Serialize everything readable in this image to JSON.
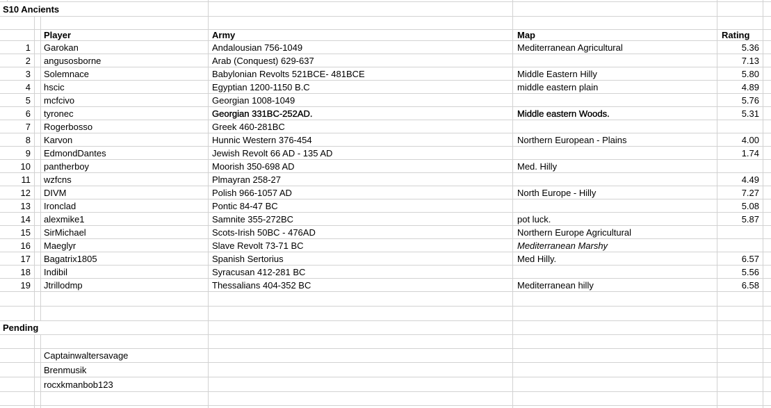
{
  "sheet": {
    "title": "S10 Ancients",
    "pending_label": "Pending",
    "headers": {
      "player": "Player",
      "army": "Army",
      "map": "Map",
      "rating": "Rating"
    },
    "players": [
      {
        "num": "1",
        "player": "Garokan",
        "army": "Andalousian 756-1049",
        "map": "Mediterranean Agricultural",
        "rating": "5.36"
      },
      {
        "num": "2",
        "player": "angusosborne",
        "army": "Arab (Conquest) 629-637",
        "map": "",
        "rating": "7.13"
      },
      {
        "num": "3",
        "player": "Solemnace",
        "army": "Babylonian Revolts 521BCE- 481BCE",
        "map": "Middle Eastern Hilly",
        "rating": "5.80"
      },
      {
        "num": "4",
        "player": "hscic",
        "army": "Egyptian 1200-1150 B.C",
        "map": "middle eastern plain",
        "rating": "4.89"
      },
      {
        "num": "5",
        "player": "mcfcivo",
        "army": "Georgian 1008-1049",
        "map": "",
        "rating": "5.76"
      },
      {
        "num": "6",
        "player": "tyronec",
        "army": "Georgian 331BC-252AD.",
        "map": "Middle eastern Woods.",
        "rating": "5.31",
        "army_emphasis": true,
        "map_emphasis": true
      },
      {
        "num": "7",
        "player": "Rogerbosso",
        "army": "Greek 460-281BC",
        "map": "",
        "rating": ""
      },
      {
        "num": "8",
        "player": "Karvon",
        "army": "Hunnic Western 376-454",
        "map": "Northern European - Plains",
        "rating": "4.00"
      },
      {
        "num": "9",
        "player": "EdmondDantes",
        "army": "Jewish Revolt 66 AD - 135 AD",
        "map": "",
        "rating": "1.74"
      },
      {
        "num": "10",
        "player": "pantherboy",
        "army": "Moorish 350-698 AD",
        "map": "Med. Hilly",
        "rating": ""
      },
      {
        "num": "11",
        "player": "wzfcns",
        "army": "Plmayran 258-27",
        "map": "",
        "rating": "4.49"
      },
      {
        "num": "12",
        "player": "DIVM",
        "army": "Polish 966-1057 AD",
        "map": "North Europe - Hilly",
        "rating": "7.27"
      },
      {
        "num": "13",
        "player": "Ironclad",
        "army": "Pontic 84-47 BC",
        "map": "",
        "rating": "5.08"
      },
      {
        "num": "14",
        "player": "alexmike1",
        "army": "Samnite 355-272BC",
        "map": "pot luck.",
        "rating": "5.87"
      },
      {
        "num": "15",
        "player": "SirMichael",
        "army": "Scots-Irish 50BC - 476AD",
        "map": "Northern Europe Agricultural",
        "rating": ""
      },
      {
        "num": "16",
        "player": "Maeglyr",
        "army": "Slave Revolt 73-71 BC",
        "map": "Mediterranean Marshy",
        "rating": "",
        "map_italic": true
      },
      {
        "num": "17",
        "player": "Bagatrix1805",
        "army": "Spanish Sertorius",
        "map": "Med Hilly.",
        "rating": "6.57"
      },
      {
        "num": "18",
        "player": "Indibil",
        "army": "Syracusan 412-281 BC",
        "map": "",
        "rating": "5.56"
      },
      {
        "num": "19",
        "player": "Jtrillodmp",
        "army": "Thessalians 404-352 BC",
        "map": "Mediterranean hilly",
        "rating": "6.58"
      }
    ],
    "pending_players": [
      "Captainwaltersavage",
      "Brenmusik",
      "rocxkmanbob123"
    ],
    "colors": {
      "gridline": "#d2d2d2",
      "text": "#000000",
      "background": "#ffffff"
    }
  }
}
